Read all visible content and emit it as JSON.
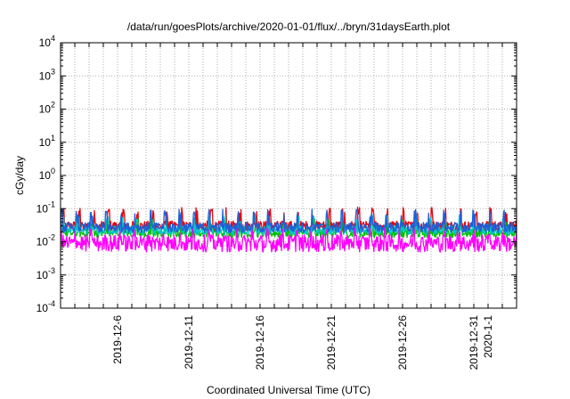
{
  "chart_data": {
    "type": "line",
    "title": "/data/run/goesPlots/archive/2020-01-01/flux/../bryn/31daysEarth.plot",
    "xlabel": "Coordinated Universal Time (UTC)",
    "ylabel": "cGy/day",
    "yscale": "log",
    "ylim": [
      0.0001,
      10000
    ],
    "xlim": [
      "2019-12-02",
      "2020-01-03"
    ],
    "grid": true,
    "y_ticks": [
      {
        "mant": "10",
        "exp": "-4"
      },
      {
        "mant": "10",
        "exp": "-3"
      },
      {
        "mant": "10",
        "exp": "-2"
      },
      {
        "mant": "10",
        "exp": "-1"
      },
      {
        "mant": "10",
        "exp": "0"
      },
      {
        "mant": "10",
        "exp": "1"
      },
      {
        "mant": "10",
        "exp": "2"
      },
      {
        "mant": "10",
        "exp": "3"
      },
      {
        "mant": "10",
        "exp": "4"
      }
    ],
    "x_ticks": [
      "2019-12-6",
      "2019-12-11",
      "2019-12-16",
      "2019-12-21",
      "2019-12-26",
      "2019-12-31",
      "2020-1-1"
    ],
    "x_tick_dates": [
      "2019-12-06",
      "2019-12-11",
      "2019-12-16",
      "2019-12-21",
      "2019-12-26",
      "2019-12-31",
      "2020-01-01"
    ],
    "series": [
      {
        "color": "#e8000b",
        "baseline": 0.03,
        "peak": 0.085,
        "spread": 0.35
      },
      {
        "color": "#00c000",
        "baseline": 0.018,
        "peak": 0.04,
        "spread": 0.3
      },
      {
        "color": "#00c8c8",
        "baseline": 0.022,
        "peak": 0.05,
        "spread": 0.3
      },
      {
        "color": "#1f5fd6",
        "baseline": 0.027,
        "peak": 0.075,
        "spread": 0.35
      },
      {
        "color": "#ff00ff",
        "baseline": 0.009,
        "peak": 0.02,
        "spread": 0.6
      }
    ]
  }
}
